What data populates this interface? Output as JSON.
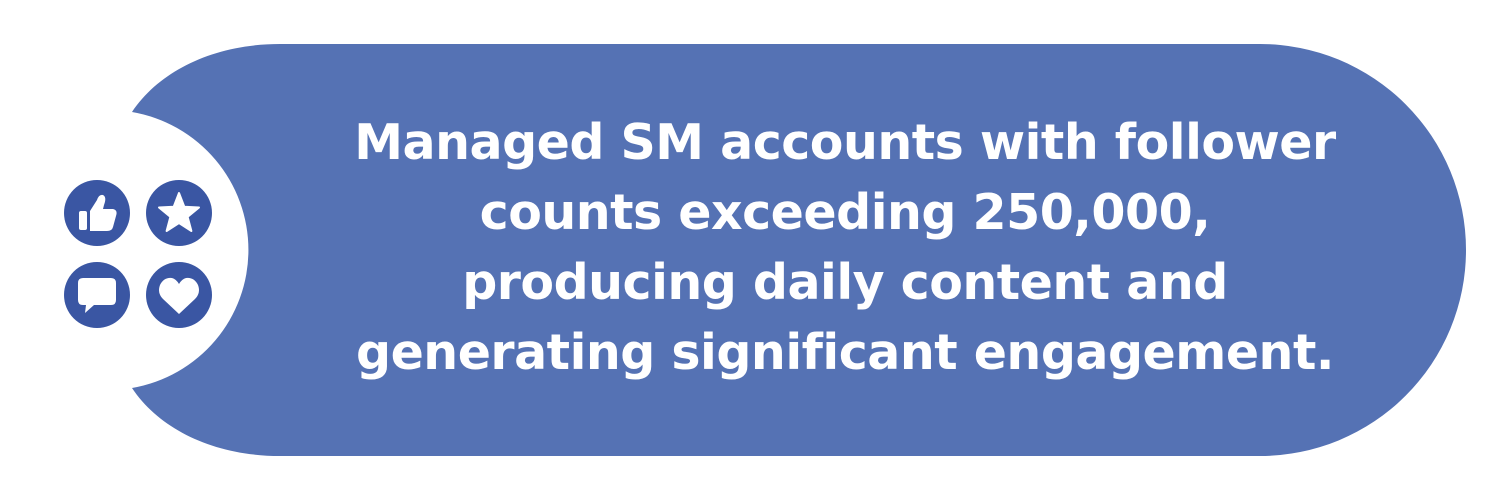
{
  "colors": {
    "shape_fill": "#5572b4",
    "badge_fill": "#3a56a3",
    "text": "#ffffff",
    "background": "#ffffff"
  },
  "icons": [
    {
      "name": "thumbs-up-icon"
    },
    {
      "name": "star-icon"
    },
    {
      "name": "speech-bubble-icon"
    },
    {
      "name": "heart-icon"
    }
  ],
  "statement": {
    "lines": [
      "Managed SM accounts with follower",
      "counts exceeding 250,000,",
      "producing daily content and",
      "generating significant engagement."
    ]
  }
}
